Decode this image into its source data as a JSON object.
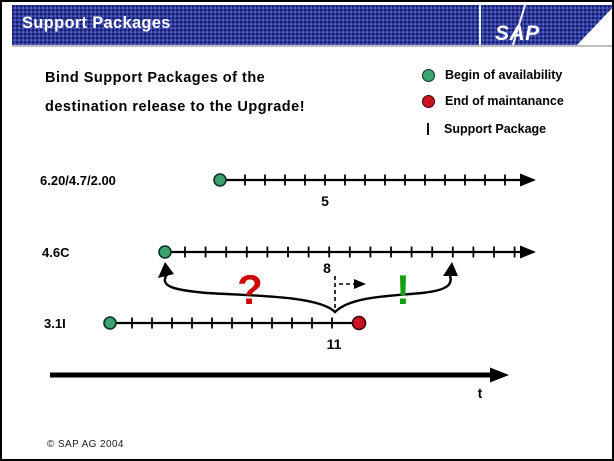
{
  "header": {
    "title": "Support Packages",
    "logo_text": "SAP"
  },
  "intro": {
    "line1": "Bind Support Packages of the",
    "line2": "destination release to the Upgrade!"
  },
  "legend": {
    "items": [
      {
        "marker": "begin-of-availability-marker",
        "label": "Begin of availability"
      },
      {
        "marker": "end-of-maintenance-marker",
        "label": "End of maintanance"
      },
      {
        "marker": "support-package-tick",
        "label": "Support Package"
      }
    ]
  },
  "diagram": {
    "timelines": [
      {
        "release": "6.20/4.7/2.00",
        "sp_label": "5",
        "begin_marker": true,
        "end_marker": false
      },
      {
        "release": "4.6C",
        "sp_label": "8",
        "begin_marker": true,
        "end_marker": false
      },
      {
        "release": "3.1I",
        "sp_label": "11",
        "begin_marker": true,
        "end_marker": true
      }
    ],
    "question_mark": "?",
    "exclamation_mark": "!",
    "time_axis_label": "t"
  },
  "footer": {
    "copyright": "© SAP AG 2004"
  },
  "colors": {
    "header_blue": "#2e3a96",
    "begin_green": "#3ba36e",
    "end_red": "#cc1122",
    "question_red": "#cc0a0a",
    "exclamation_green": "#12a012"
  }
}
